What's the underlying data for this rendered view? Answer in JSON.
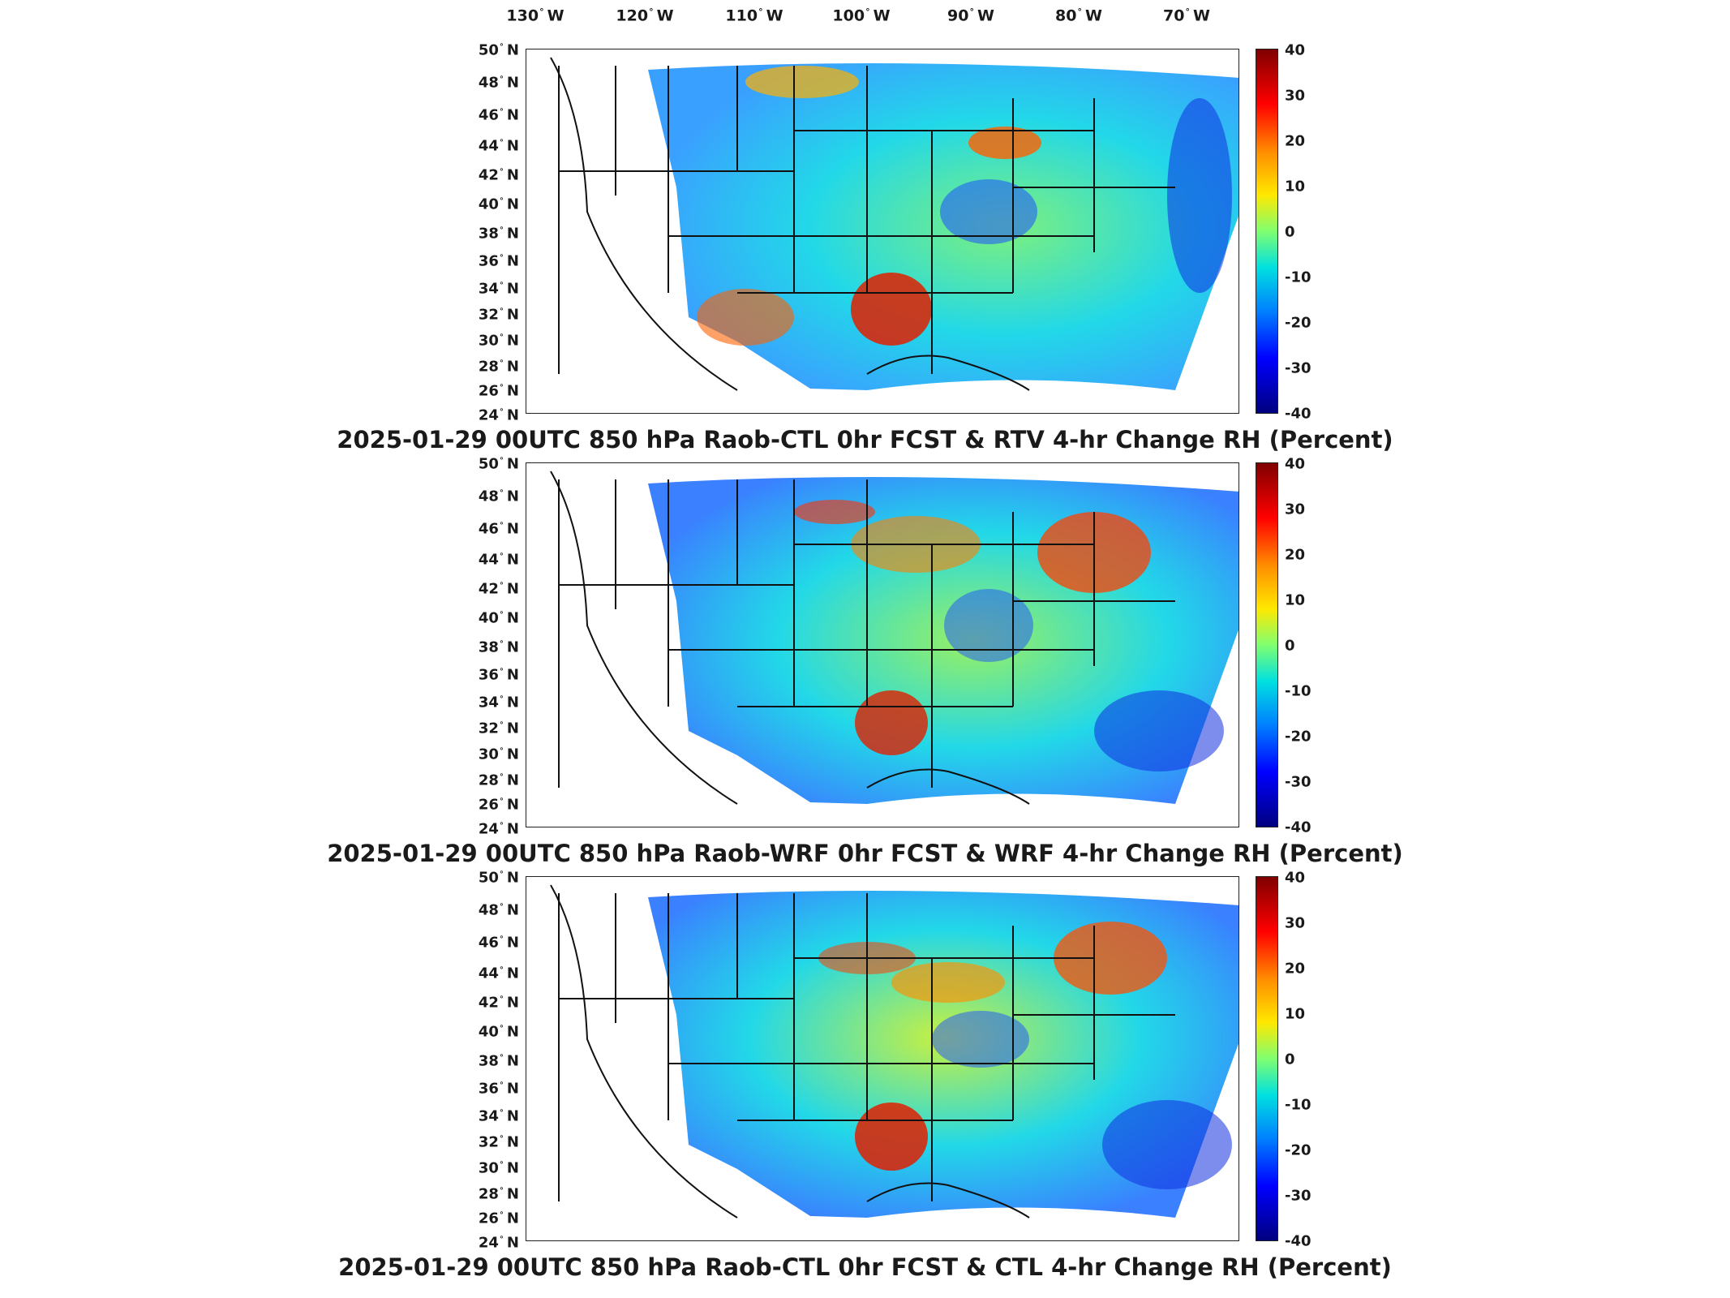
{
  "longitude_labels": [
    "130",
    "120",
    "110",
    "100",
    "90",
    "80",
    "70"
  ],
  "longitude_hemisphere": "W",
  "latitude_labels": [
    "50",
    "48",
    "46",
    "44",
    "42",
    "40",
    "38",
    "36",
    "34",
    "32",
    "30",
    "28",
    "26",
    "24"
  ],
  "latitude_hemisphere": "N",
  "colorbar": {
    "ticks": [
      "40",
      "30",
      "20",
      "10",
      "0",
      "-10",
      "-20",
      "-30",
      "-40"
    ],
    "range": [
      -40,
      40
    ],
    "colormap": "jet"
  },
  "panels": [
    {
      "title": "2025-01-29 00UTC 850 hPa Raob-CTL 0hr FCST & RTV 4-hr Change RH (Percent)"
    },
    {
      "title": "2025-01-29 00UTC 850 hPa Raob-WRF 0hr FCST & WRF 4-hr Change RH (Percent)"
    },
    {
      "title": "2025-01-29 00UTC 850 hPa Raob-CTL 0hr FCST & CTL 4-hr Change RH (Percent)"
    }
  ],
  "colors": {
    "warm": "#ff8c00",
    "neutral": "#7df07d",
    "cool": "#00c8f0",
    "dry": "#1e50ff",
    "outline": "#111111"
  }
}
